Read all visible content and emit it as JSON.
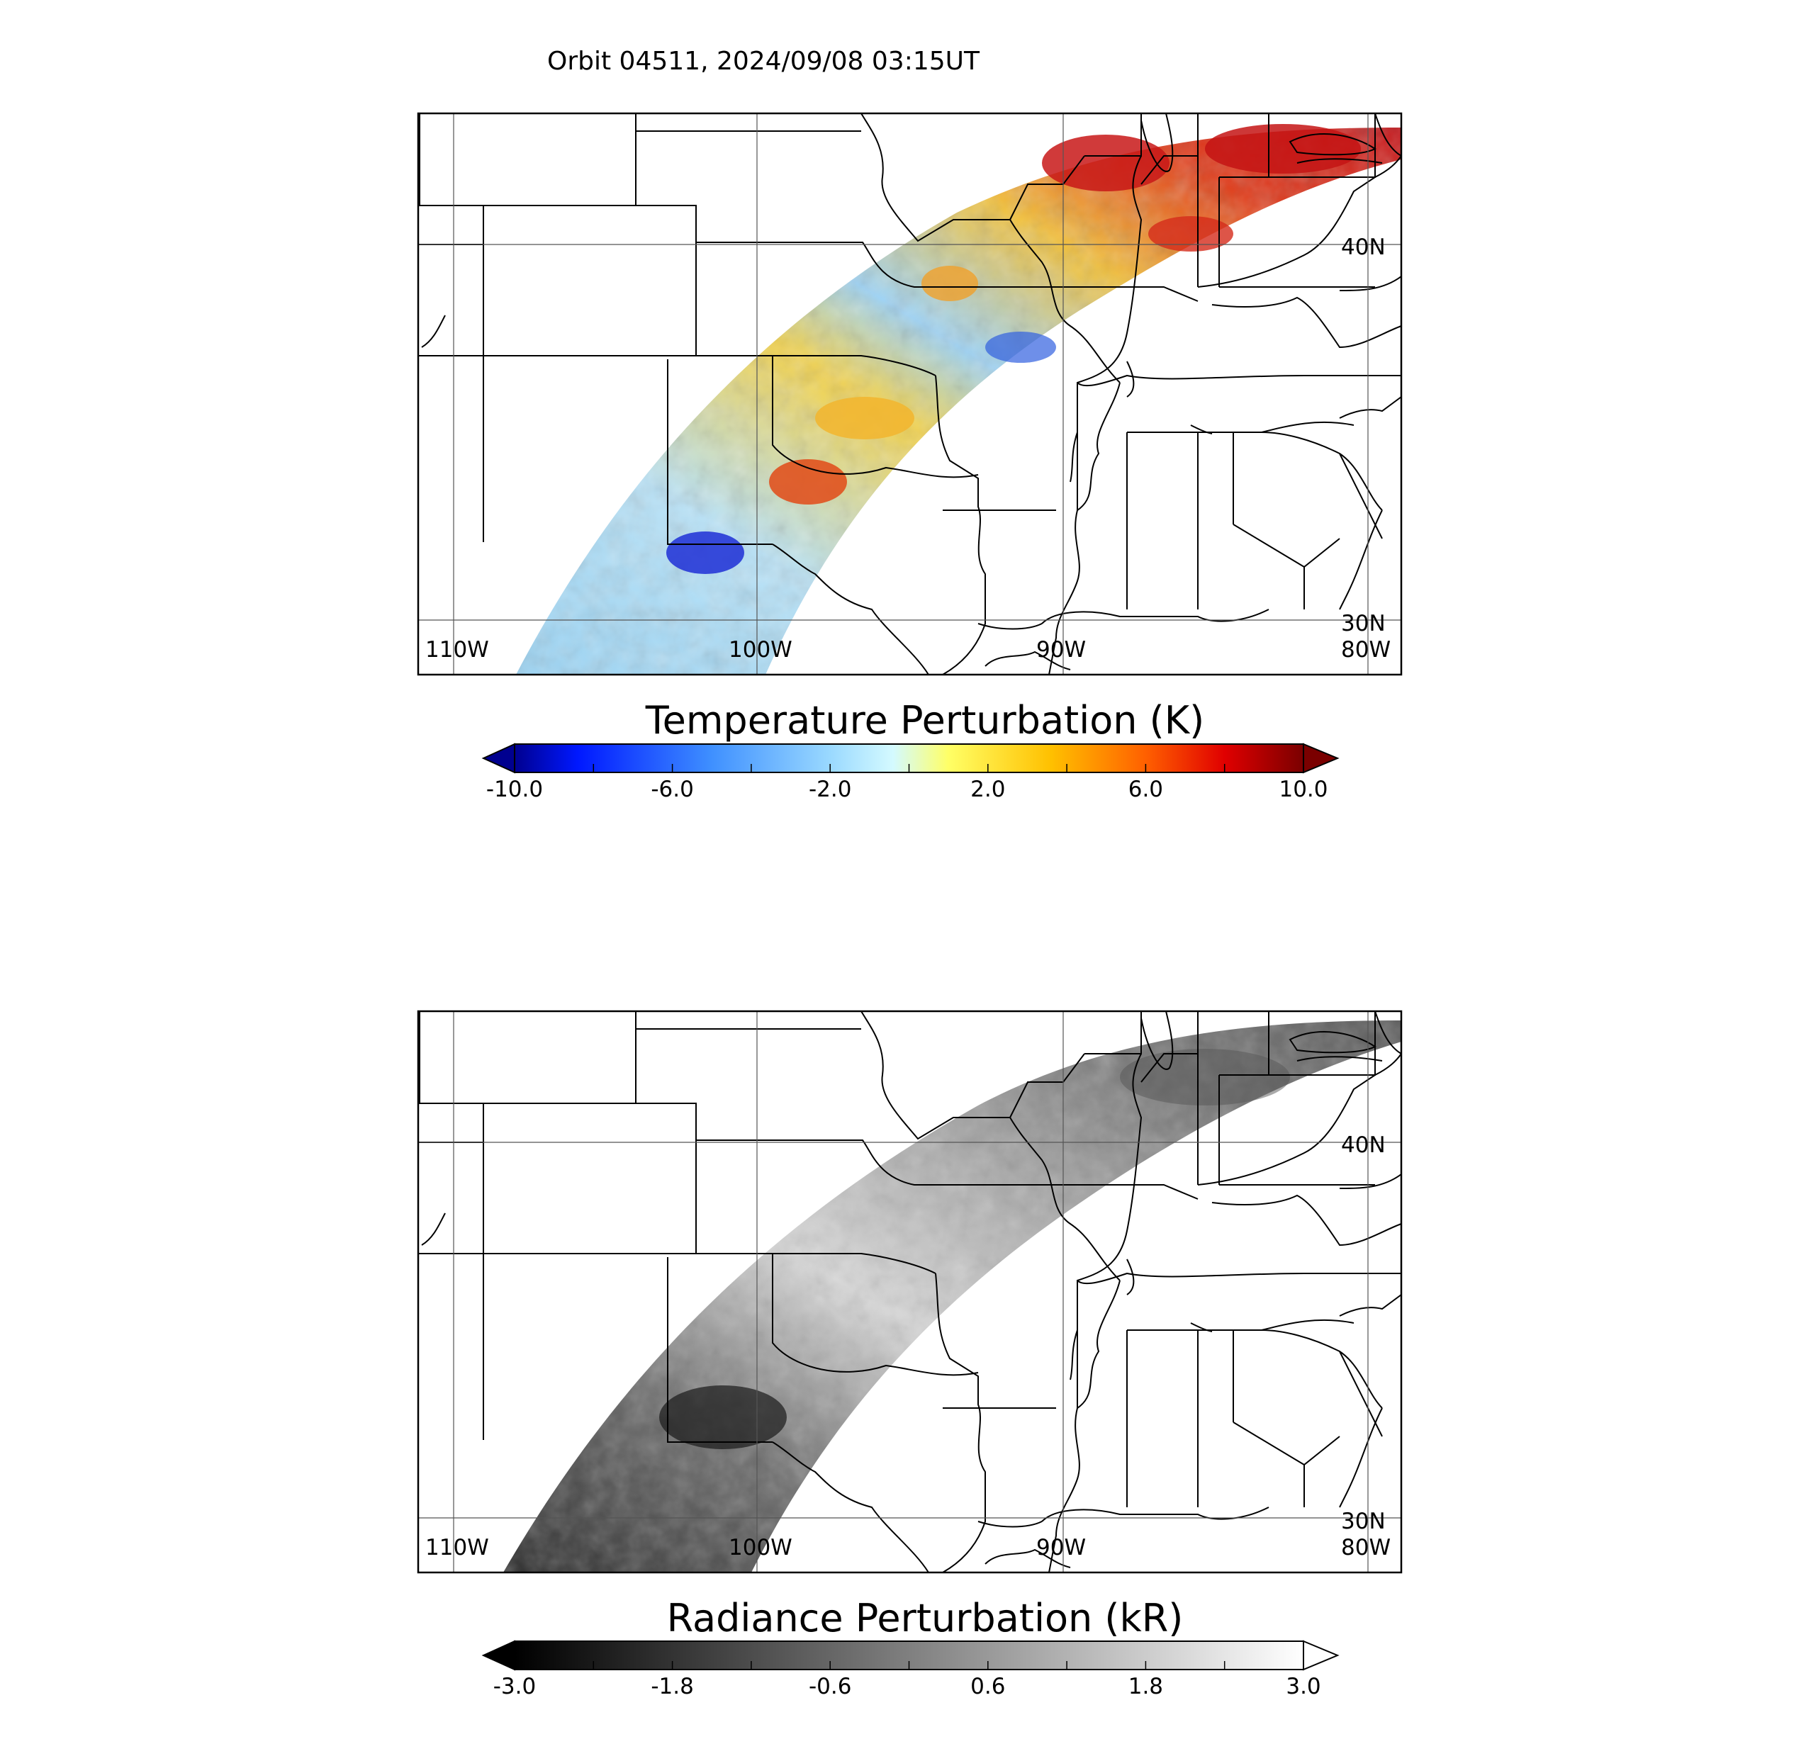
{
  "figure_title": "Orbit 04511, 2024/09/08 03:15UT",
  "panels": [
    {
      "id": "temperature",
      "colorbar_title": "Temperature Perturbation (K)",
      "colorbar_ticks": [
        "-10.0",
        "-6.0",
        "-2.0",
        "2.0",
        "6.0",
        "10.0"
      ],
      "colorbar_range": [
        -10,
        10
      ],
      "colormap": [
        "#00008f",
        "#0000ff",
        "#3f8fff",
        "#8fd3ff",
        "#c8f6ff",
        "#ffff60",
        "#ffc000",
        "#ff6a00",
        "#e00000",
        "#800000"
      ],
      "map_labels": {
        "lon_110": "110W",
        "lon_100": "100W",
        "lon_90": "90W",
        "lon_80": "80W",
        "lat_40": "40N",
        "lat_30": "30N"
      }
    },
    {
      "id": "radiance",
      "colorbar_title": "Radiance Perturbation (kR)",
      "colorbar_ticks": [
        "-3.0",
        "-1.8",
        "-0.6",
        "0.6",
        "1.8",
        "3.0"
      ],
      "colorbar_range": [
        -3,
        3
      ],
      "colormap": [
        "#000000",
        "#ffffff"
      ],
      "map_labels": {
        "lon_110": "110W",
        "lon_100": "100W",
        "lon_90": "90W",
        "lon_80": "80W",
        "lat_40": "40N",
        "lat_30": "30N"
      }
    }
  ]
}
